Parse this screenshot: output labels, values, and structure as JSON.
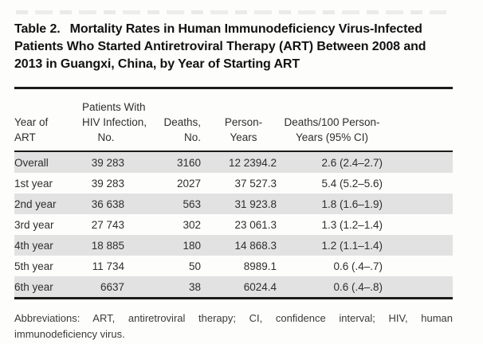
{
  "page": {
    "title_label": "Table 2.",
    "title_lines": [
      "Mortality Rates in Human Immunodeficiency Virus-Infected",
      "Patients Who Started Antiretroviral Therapy (ART) Between 2008 and",
      "2013 in Guangxi, China, by Year of Starting ART"
    ],
    "footnote": "Abbreviations: ART, antiretroviral therapy; CI, confidence interval; HIV, human immunodeficiency virus."
  },
  "table": {
    "columns": [
      {
        "header_lines": [
          "Year of",
          "ART"
        ]
      },
      {
        "header_lines": [
          "Patients With",
          "HIV Infection,",
          "No."
        ]
      },
      {
        "header_lines": [
          "Deaths,",
          "No."
        ]
      },
      {
        "header_lines": [
          "Person-",
          "Years"
        ]
      },
      {
        "header_lines": [
          "Deaths/100 Person-",
          "Years (95% CI)"
        ]
      }
    ],
    "rows": [
      [
        "Overall",
        "39 283",
        "3160",
        "12 2394.2",
        "2.6 (2.4–2.7)"
      ],
      [
        "1st year",
        "39 283",
        "2027",
        "37 527.3",
        "5.4 (5.2–5.6)"
      ],
      [
        "2nd year",
        "36 638",
        "563",
        "31 923.8",
        "1.8 (1.6–1.9)"
      ],
      [
        "3rd year",
        "27 743",
        "302",
        "23 061.3",
        "1.3 (1.2–1.4)"
      ],
      [
        "4th year",
        "18 885",
        "180",
        "14 868.3",
        "1.2 (1.1–1.4)"
      ],
      [
        "5th year",
        "11 734",
        "50",
        "8989.1",
        "0.6 (.4–.7)"
      ],
      [
        "6th year",
        "6637",
        "38",
        "6024.4",
        "0.6 (.4–.8)"
      ]
    ]
  },
  "colors": {
    "row_shading": "#e2e2e2",
    "rule": "#1b1b1b",
    "text": "#2e2e2e"
  }
}
